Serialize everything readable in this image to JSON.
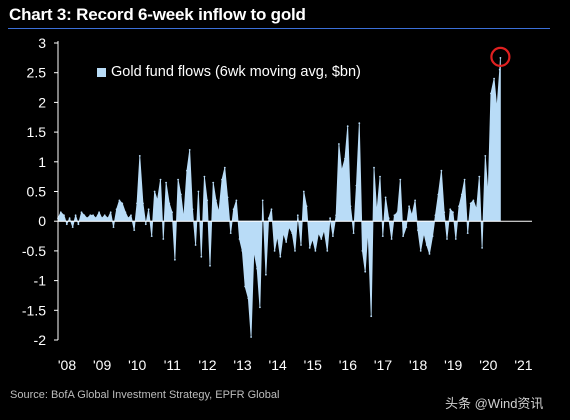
{
  "header": {
    "title": "Chart 3: Record 6-week inflow to gold"
  },
  "footer": {
    "source": "Source: BofA Global Investment Strategy, EPFR Global",
    "watermark": "头条 @Wind资讯"
  },
  "colors": {
    "background": "#000000",
    "fill": "#b9dcf7",
    "highlight_ring": "#e02020",
    "title_rule": "#3b6fd8"
  },
  "chart_data": {
    "type": "area",
    "title": "Chart 3: Record 6-week inflow to gold",
    "xlabel": "",
    "ylabel": "",
    "xlim": [
      2008.0,
      2021.5
    ],
    "ylim": [
      -2,
      3
    ],
    "yticks": [
      "3",
      "2.5",
      "2",
      "1.5",
      "1",
      "0.5",
      "0",
      "-0.5",
      "-1",
      "-1.5",
      "-2"
    ],
    "xticks": [
      "'08",
      "'09",
      "'10",
      "'11",
      "'12",
      "'13",
      "'14",
      "'15",
      "'16",
      "'17",
      "'18",
      "'19",
      "'20",
      "'21"
    ],
    "grid": false,
    "legend_position": "top-left",
    "annotation": "red circle marking the latest record value",
    "series": [
      {
        "name": "Gold fund flows (6wk moving avg, $bn)",
        "x": [
          2008.0,
          2008.08,
          2008.17,
          2008.25,
          2008.33,
          2008.42,
          2008.5,
          2008.58,
          2008.67,
          2008.75,
          2008.83,
          2008.92,
          2009.0,
          2009.08,
          2009.17,
          2009.25,
          2009.33,
          2009.42,
          2009.5,
          2009.58,
          2009.67,
          2009.75,
          2009.83,
          2009.92,
          2010.0,
          2010.08,
          2010.17,
          2010.25,
          2010.33,
          2010.42,
          2010.5,
          2010.58,
          2010.67,
          2010.75,
          2010.83,
          2010.92,
          2011.0,
          2011.08,
          2011.17,
          2011.25,
          2011.33,
          2011.42,
          2011.5,
          2011.58,
          2011.67,
          2011.75,
          2011.83,
          2011.92,
          2012.0,
          2012.08,
          2012.17,
          2012.25,
          2012.33,
          2012.42,
          2012.5,
          2012.58,
          2012.67,
          2012.75,
          2012.83,
          2012.92,
          2013.0,
          2013.08,
          2013.17,
          2013.25,
          2013.33,
          2013.42,
          2013.5,
          2013.58,
          2013.67,
          2013.75,
          2013.83,
          2013.92,
          2014.0,
          2014.08,
          2014.17,
          2014.25,
          2014.33,
          2014.42,
          2014.5,
          2014.58,
          2014.67,
          2014.75,
          2014.83,
          2014.92,
          2015.0,
          2015.08,
          2015.17,
          2015.25,
          2015.33,
          2015.42,
          2015.5,
          2015.58,
          2015.67,
          2015.75,
          2015.83,
          2015.92,
          2016.0,
          2016.08,
          2016.17,
          2016.25,
          2016.33,
          2016.42,
          2016.5,
          2016.58,
          2016.67,
          2016.75,
          2016.83,
          2016.92,
          2017.0,
          2017.08,
          2017.17,
          2017.25,
          2017.33,
          2017.42,
          2017.5,
          2017.58,
          2017.67,
          2017.75,
          2017.83,
          2017.92,
          2018.0,
          2018.08,
          2018.17,
          2018.25,
          2018.33,
          2018.42,
          2018.5,
          2018.58,
          2018.67,
          2018.75,
          2018.83,
          2018.92,
          2019.0,
          2019.08,
          2019.17,
          2019.25,
          2019.33,
          2019.42,
          2019.5,
          2019.58,
          2019.67,
          2019.75,
          2019.83,
          2019.92,
          2020.0,
          2020.08,
          2020.17,
          2020.25,
          2020.33,
          2020.42,
          2020.5,
          2020.58,
          2020.6
        ],
        "values": [
          0.05,
          0.15,
          0.1,
          -0.05,
          0.05,
          -0.1,
          0.1,
          -0.05,
          0.15,
          0.1,
          0.05,
          0.1,
          0.1,
          0.05,
          0.15,
          0.05,
          0.1,
          0.05,
          0.15,
          -0.1,
          0.2,
          0.35,
          0.3,
          0.15,
          0.05,
          0.1,
          -0.15,
          0.3,
          1.1,
          0.3,
          -0.05,
          0.2,
          -0.25,
          0.5,
          0.35,
          0.7,
          -0.3,
          0.65,
          0.3,
          0.15,
          -0.65,
          0.7,
          0.45,
          0.05,
          0.85,
          1.2,
          0.2,
          -0.4,
          0.5,
          -0.6,
          0.75,
          0.35,
          -0.75,
          0.65,
          0.35,
          0.15,
          0.7,
          0.9,
          0.4,
          -0.2,
          0.2,
          0.35,
          -0.3,
          -0.5,
          -1.1,
          -1.3,
          -1.95,
          -0.5,
          -0.8,
          -1.45,
          0.35,
          -0.9,
          0.05,
          0.2,
          -0.5,
          -0.25,
          -0.6,
          -0.2,
          -0.35,
          -0.1,
          -0.2,
          -0.5,
          0.1,
          -0.4,
          0.5,
          0.25,
          -0.45,
          -0.3,
          -0.5,
          -0.2,
          -0.3,
          -0.15,
          -0.5,
          0.05,
          -0.25,
          0.1,
          1.3,
          0.85,
          1.05,
          1.6,
          0.25,
          -0.2,
          0.6,
          1.65,
          -0.5,
          -0.85,
          -0.15,
          -1.6,
          0.9,
          0.15,
          0.75,
          -0.25,
          0.4,
          0.05,
          -0.3,
          0.1,
          0.15,
          0.7,
          -0.25,
          -0.1,
          0.25,
          0.1,
          0.35,
          -0.15,
          -0.5,
          -0.2,
          -0.4,
          -0.55,
          -0.25,
          0.1,
          0.45,
          0.85,
          0.15,
          -0.3,
          0.2,
          0.15,
          -0.3,
          0.25,
          0.45,
          0.7,
          -0.2,
          0.3,
          0.35,
          0.2,
          0.75,
          -0.45,
          1.1,
          0.45,
          2.15,
          2.4,
          1.9,
          2.55,
          2.75
        ]
      }
    ]
  }
}
